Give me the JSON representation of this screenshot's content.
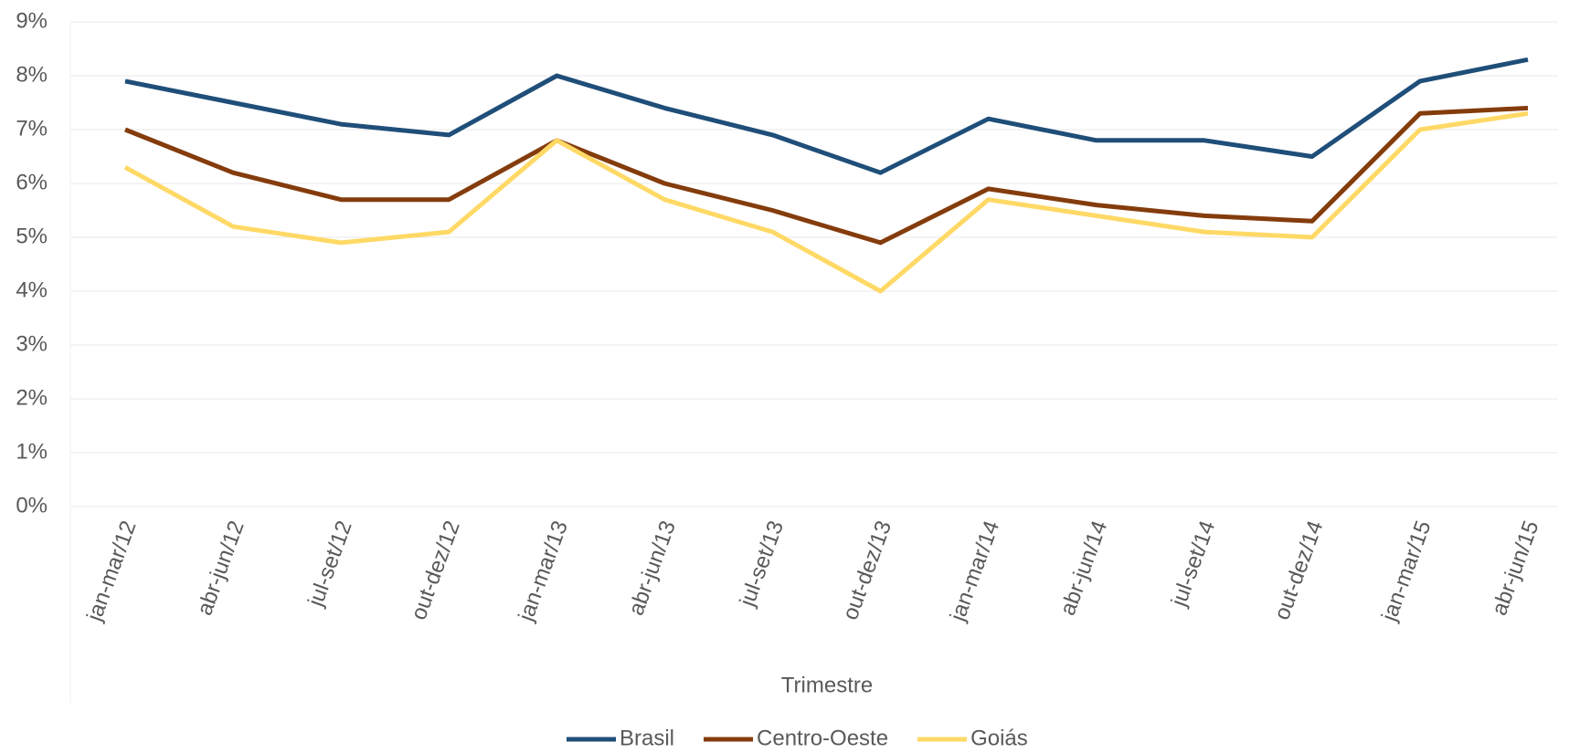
{
  "chart_data": {
    "type": "line",
    "x_label": "Trimestre",
    "categories": [
      "jan-mar/12",
      "abr-jun/12",
      "jul-set/12",
      "out-dez/12",
      "jan-mar/13",
      "abr-jun/13",
      "jul-set/13",
      "out-dez/13",
      "jan-mar/14",
      "abr-jun/14",
      "jul-set/14",
      "out-dez/14",
      "jan-mar/15",
      "abr-jun/15"
    ],
    "series": [
      {
        "name": "Brasil",
        "color": "#1f4e79",
        "values": [
          7.9,
          7.5,
          7.1,
          6.9,
          8.0,
          7.4,
          6.9,
          6.2,
          7.2,
          6.8,
          6.8,
          6.5,
          7.9,
          8.3
        ]
      },
      {
        "name": "Centro-Oeste",
        "color": "#843c0c",
        "values": [
          7.0,
          6.2,
          5.7,
          5.7,
          6.8,
          6.0,
          5.5,
          4.9,
          5.9,
          5.6,
          5.4,
          5.3,
          7.3,
          7.4
        ]
      },
      {
        "name": "Goiás",
        "color": "#ffd966",
        "values": [
          6.3,
          5.2,
          4.9,
          5.1,
          6.8,
          5.7,
          5.1,
          4.0,
          5.7,
          5.4,
          5.1,
          5.0,
          7.0,
          7.3
        ]
      }
    ],
    "ylim": [
      0,
      9
    ],
    "yticks": [
      {
        "value": 0,
        "label": "0%"
      },
      {
        "value": 1,
        "label": "1%"
      },
      {
        "value": 2,
        "label": "2%"
      },
      {
        "value": 3,
        "label": "3%"
      },
      {
        "value": 4,
        "label": "4%"
      },
      {
        "value": 5,
        "label": "5%"
      },
      {
        "value": 6,
        "label": "6%"
      },
      {
        "value": 7,
        "label": "7%"
      },
      {
        "value": 8,
        "label": "8%"
      },
      {
        "value": 9,
        "label": "9%"
      }
    ],
    "grid": true,
    "legend": "bottom"
  }
}
